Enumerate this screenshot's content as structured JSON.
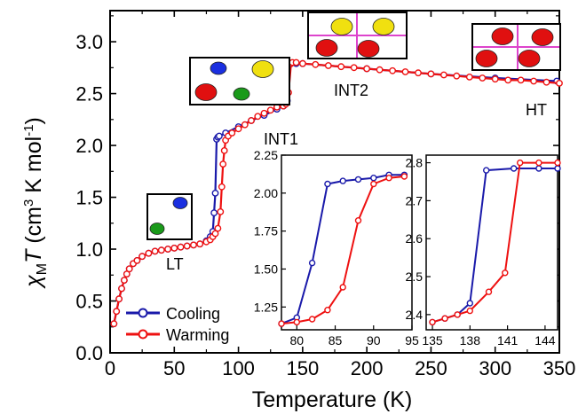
{
  "chart_data": {
    "type": "line",
    "xlabel": "Temperature (K)",
    "ylabel": {
      "chi": "χ",
      "sub": "M",
      "T": "T",
      "unit_open": " (cm",
      "sup3": "3",
      "unit_mid": " K mol",
      "supm1": "-1",
      "unit_close": ")"
    },
    "xlim": [
      0,
      350
    ],
    "ylim": [
      0.0,
      3.3
    ],
    "xticks": [
      "0",
      "50",
      "100",
      "150",
      "200",
      "250",
      "300",
      "350"
    ],
    "yticks": [
      "0.0",
      "0.5",
      "1.0",
      "1.5",
      "2.0",
      "2.5",
      "3.0"
    ],
    "colors": {
      "cooling": "#1a1aaa",
      "warming": "#ee1111",
      "pink_line": "#dd44cc",
      "blue_ball": "#1a2fe0",
      "yellow_ball": "#f0e010",
      "red_ball": "#e01010",
      "green_ball": "#1a9a1a"
    },
    "series": [
      {
        "name": "Cooling",
        "key": "cooling",
        "x": [
          3,
          5,
          7,
          9,
          11,
          13,
          15,
          18,
          21,
          25,
          30,
          35,
          40,
          45,
          50,
          55,
          60,
          65,
          70,
          75,
          78,
          80,
          81,
          82,
          83,
          84,
          85,
          90,
          100,
          110,
          120,
          130,
          135,
          136,
          137,
          138,
          139,
          140,
          145,
          150,
          200,
          250,
          300,
          348
        ],
        "y": [
          0.28,
          0.4,
          0.52,
          0.62,
          0.7,
          0.76,
          0.81,
          0.86,
          0.89,
          0.93,
          0.96,
          0.98,
          0.99,
          1.0,
          1.01,
          1.02,
          1.03,
          1.04,
          1.05,
          1.08,
          1.12,
          1.17,
          1.35,
          1.54,
          2.06,
          2.08,
          2.09,
          2.12,
          2.18,
          2.24,
          2.29,
          2.35,
          2.38,
          2.39,
          2.41,
          2.43,
          2.78,
          2.78,
          2.79,
          2.79,
          2.74,
          2.69,
          2.65,
          2.62
        ]
      },
      {
        "name": "Warming",
        "key": "warming",
        "x": [
          3,
          5,
          7,
          9,
          11,
          13,
          15,
          18,
          21,
          25,
          30,
          35,
          40,
          45,
          50,
          55,
          60,
          65,
          70,
          75,
          78,
          80,
          82,
          84,
          86,
          87,
          88,
          89,
          90,
          92,
          95,
          100,
          105,
          110,
          115,
          120,
          125,
          130,
          135,
          137,
          139,
          141,
          142,
          145,
          150,
          160,
          170,
          180,
          190,
          200,
          210,
          220,
          230,
          240,
          250,
          260,
          270,
          280,
          290,
          300,
          310,
          320,
          330,
          340,
          350
        ],
        "y": [
          0.28,
          0.4,
          0.52,
          0.62,
          0.7,
          0.76,
          0.81,
          0.86,
          0.89,
          0.93,
          0.96,
          0.98,
          0.99,
          1.0,
          1.01,
          1.02,
          1.03,
          1.04,
          1.05,
          1.07,
          1.09,
          1.12,
          1.15,
          1.2,
          1.36,
          1.6,
          1.82,
          1.95,
          2.05,
          2.09,
          2.12,
          2.16,
          2.2,
          2.24,
          2.28,
          2.31,
          2.34,
          2.37,
          2.38,
          2.4,
          2.51,
          2.79,
          2.8,
          2.8,
          2.79,
          2.78,
          2.77,
          2.76,
          2.75,
          2.74,
          2.73,
          2.72,
          2.71,
          2.7,
          2.69,
          2.68,
          2.67,
          2.66,
          2.65,
          2.64,
          2.63,
          2.63,
          2.62,
          2.61,
          2.6
        ]
      }
    ],
    "annotations": [
      "LT",
      "INT1",
      "INT2",
      "HT"
    ],
    "legend": {
      "position": "bottom-left",
      "entries": [
        "Cooling",
        "Warming"
      ]
    },
    "insets": [
      {
        "xlim": [
          78,
          95
        ],
        "ylim": [
          1.1,
          2.25
        ],
        "xticks": [
          "80",
          "85",
          "90",
          "95"
        ],
        "yticks": [
          "1.25",
          "1.50",
          "1.75",
          "2.00",
          "2.25"
        ],
        "cooling": {
          "x": [
            78,
            80,
            82,
            84,
            86,
            88,
            90,
            92,
            94
          ],
          "y": [
            1.14,
            1.18,
            1.54,
            2.06,
            2.08,
            2.09,
            2.1,
            2.12,
            2.12
          ]
        },
        "warming": {
          "x": [
            78,
            80,
            82,
            84,
            86,
            88,
            90,
            92,
            94
          ],
          "y": [
            1.14,
            1.15,
            1.17,
            1.23,
            1.38,
            1.82,
            2.06,
            2.1,
            2.11
          ]
        }
      },
      {
        "xlim": [
          134.5,
          145
        ],
        "ylim": [
          2.36,
          2.82
        ],
        "xticks": [
          "135",
          "138",
          "141",
          "144"
        ],
        "yticks": [
          "2.4",
          "2.5",
          "2.6",
          "2.7",
          "2.8"
        ],
        "cooling": {
          "x": [
            135,
            136,
            137,
            138,
            139.3,
            141.5,
            143.5,
            145
          ],
          "y": [
            2.38,
            2.39,
            2.4,
            2.43,
            2.78,
            2.785,
            2.785,
            2.785
          ]
        },
        "warming": {
          "x": [
            135,
            136,
            137,
            138,
            139.5,
            140.8,
            142,
            143.5,
            145
          ],
          "y": [
            2.38,
            2.39,
            2.4,
            2.41,
            2.46,
            2.51,
            2.8,
            2.8,
            2.8
          ]
        }
      }
    ]
  }
}
